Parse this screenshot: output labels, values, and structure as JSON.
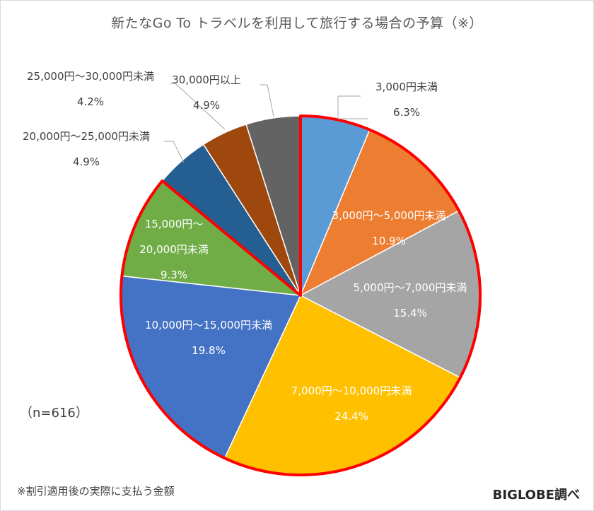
{
  "title": "新たなGo To トラベルを利用して旅行する場合の予算（※）",
  "sample_size": "（n=616）",
  "footnote": "※割引適用後の実際に支払う金額",
  "source": "BIGLOBE調べ",
  "colors": {
    "highlight_outline": "#ff0000",
    "leader_line": "#a6a6a6"
  },
  "chart_data": {
    "type": "pie",
    "title": "新たなGo To トラベルを利用して旅行する場合の予算（※）",
    "start_angle_deg": 0,
    "direction": "clockwise",
    "highlighted_group": [
      "3,000円未満",
      "3,000円～5,000円未満",
      "5,000円～7,000円未満",
      "7,000円～10,000円未満",
      "10,000円～15,000円未満",
      "15,000円～20,000円未満"
    ],
    "slices": [
      {
        "label": "3,000円未満",
        "label_lines": [
          "3,000円未満"
        ],
        "value": 6.3,
        "value_label": "6.3%",
        "color": "#5b9bd5"
      },
      {
        "label": "3,000円～5,000円未満",
        "label_lines": [
          "3,000円～5,000円未満"
        ],
        "value": 10.9,
        "value_label": "10.9%",
        "color": "#ed7d31"
      },
      {
        "label": "5,000円～7,000円未満",
        "label_lines": [
          "5,000円～7,000円未満"
        ],
        "value": 15.4,
        "value_label": "15.4%",
        "color": "#a5a5a5"
      },
      {
        "label": "7,000円～10,000円未満",
        "label_lines": [
          "7,000円～10,000円未満"
        ],
        "value": 24.4,
        "value_label": "24.4%",
        "color": "#ffc000"
      },
      {
        "label": "10,000円～15,000円未満",
        "label_lines": [
          "10,000円～15,000円未満"
        ],
        "value": 19.8,
        "value_label": "19.8%",
        "color": "#4472c4"
      },
      {
        "label": "15,000円～20,000円未満",
        "label_lines": [
          "15,000円～",
          "20,000円未満"
        ],
        "value": 9.3,
        "value_label": "9.3%",
        "color": "#70ad47"
      },
      {
        "label": "20,000円～25,000円未満",
        "label_lines": [
          "20,000円～25,000円未満"
        ],
        "value": 4.9,
        "value_label": "4.9%",
        "color": "#255e91"
      },
      {
        "label": "25,000円～30,000円未満",
        "label_lines": [
          "25,000円～30,000円未満"
        ],
        "value": 4.2,
        "value_label": "4.2%",
        "color": "#9e480e"
      },
      {
        "label": "30,000円以上",
        "label_lines": [
          "30,000円以上"
        ],
        "value": 4.9,
        "value_label": "4.9%",
        "color": "#636363"
      }
    ]
  }
}
